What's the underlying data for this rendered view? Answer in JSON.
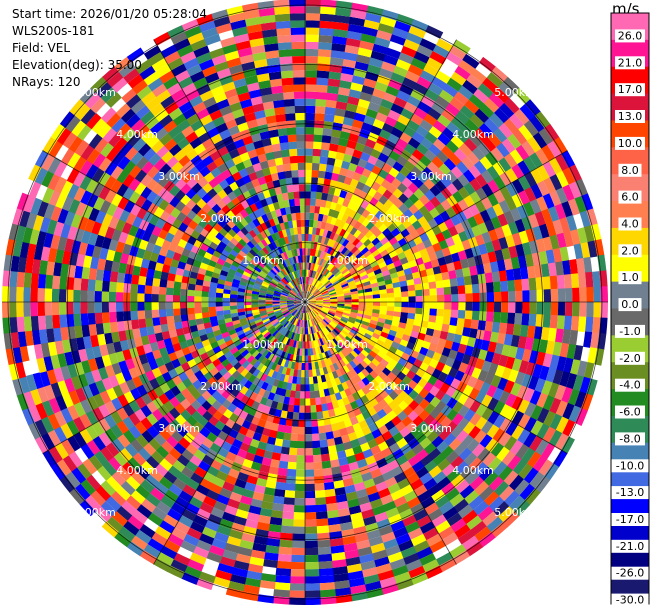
{
  "header": {
    "start_time": "Start time: 2026/01/20 05:28:04",
    "instrument": "WLS200s-181",
    "field": "Field: VEL",
    "elevation": "Elevation(deg): 35.00",
    "nrays": "NRays: 120"
  },
  "chart_data": {
    "type": "heatmap",
    "projection": "polar-ppi",
    "n_rays": 120,
    "range_rings_km": [
      1.0,
      2.0,
      3.0,
      4.0,
      5.0
    ],
    "range_ring_labels": [
      "1.00km",
      "2.00km",
      "3.00km",
      "4.00km",
      "5.00km"
    ],
    "max_range_km": 5.0,
    "grid": true,
    "colorbar": {
      "unit": "m/s",
      "placement": "right",
      "ticks": [
        "26.0",
        "21.0",
        "17.0",
        "13.0",
        "10.0",
        "8.0",
        "6.0",
        "4.0",
        "2.0",
        "1.0",
        "0.0",
        "-1.0",
        "-2.0",
        "-4.0",
        "-6.0",
        "-8.0",
        "-10.0",
        "-13.0",
        "-17.0",
        "-21.0",
        "-26.0",
        "-30.0"
      ],
      "colors": [
        "#ff69b4",
        "#ff1493",
        "#ff0000",
        "#dc143c",
        "#ff4500",
        "#ff6347",
        "#fa8072",
        "#ff7f50",
        "#ffd700",
        "#ffff00",
        "#708090",
        "#696969",
        "#9acd32",
        "#6b8e23",
        "#228b22",
        "#2e8b57",
        "#4682b4",
        "#4169e1",
        "#0000ff",
        "#0000cd",
        "#000080",
        "#191970"
      ]
    },
    "note_values": "Velocity values per cell are not individually readable; colors sampled from colorbar palette."
  }
}
